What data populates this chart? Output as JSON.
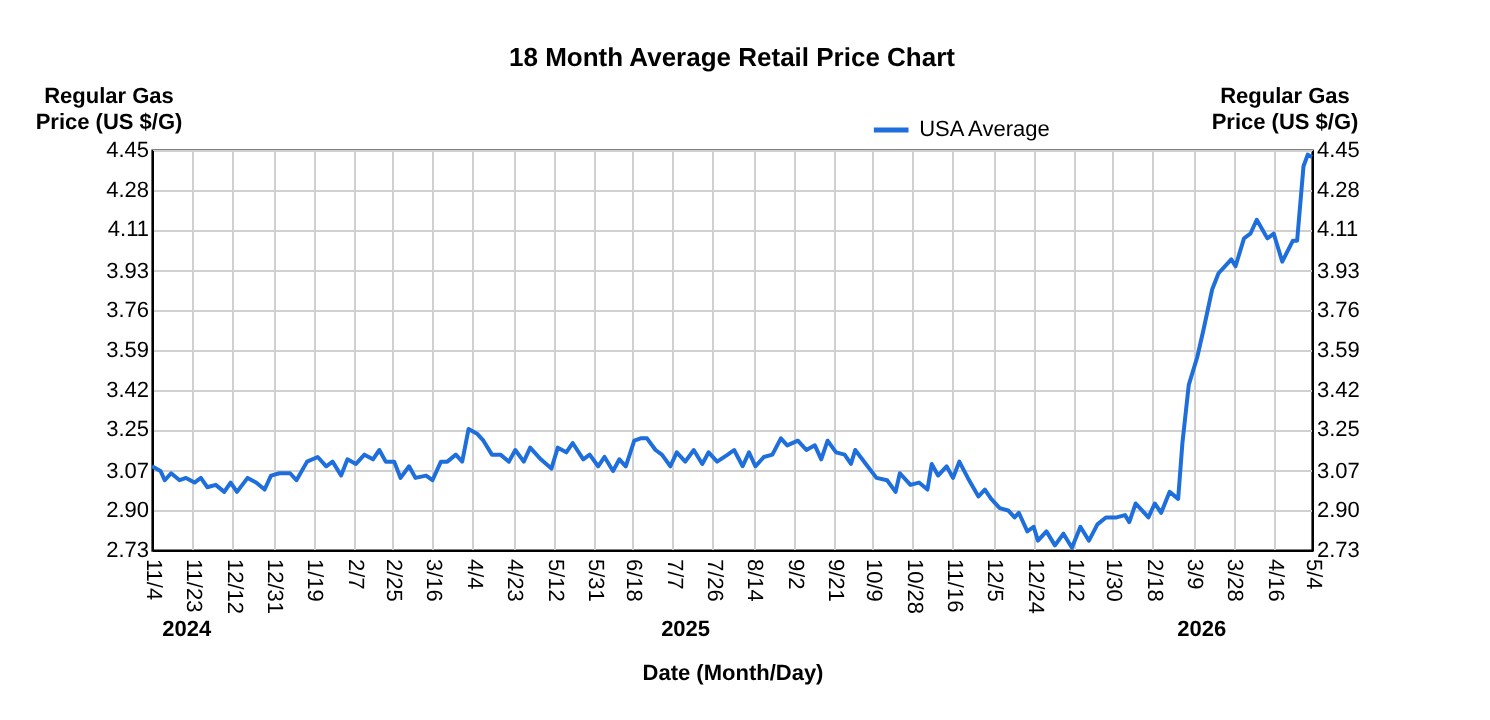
{
  "chart_data": {
    "type": "line",
    "title": "18 Month Average Retail Price Chart",
    "xlabel": "Date (Month/Day)",
    "ylabel": "Regular Gas\nPrice (US $/G)",
    "y2label": "Regular Gas\nPrice (US $/G)",
    "annotations": [
      "2024",
      "2025",
      "2026"
    ],
    "x": [
      "2024-11-04",
      "2024-11-08",
      "2024-11-10",
      "2024-11-13",
      "2024-11-17",
      "2024-11-20",
      "2024-11-24",
      "2024-11-27",
      "2024-11-30",
      "2024-12-04",
      "2024-12-08",
      "2024-12-11",
      "2024-12-14",
      "2024-12-19",
      "2024-12-23",
      "2024-12-27",
      "2024-12-30",
      "2025-01-03",
      "2025-01-08",
      "2025-01-11",
      "2025-01-16",
      "2025-01-21",
      "2025-01-25",
      "2025-01-28",
      "2025-02-01",
      "2025-02-04",
      "2025-02-08",
      "2025-02-12",
      "2025-02-16",
      "2025-02-19",
      "2025-02-22",
      "2025-02-26",
      "2025-03-01",
      "2025-03-05",
      "2025-03-08",
      "2025-03-13",
      "2025-03-16",
      "2025-03-20",
      "2025-03-23",
      "2025-03-27",
      "2025-03-30",
      "2025-04-02",
      "2025-04-06",
      "2025-04-09",
      "2025-04-13",
      "2025-04-17",
      "2025-04-21",
      "2025-04-24",
      "2025-04-28",
      "2025-05-01",
      "2025-05-06",
      "2025-05-11",
      "2025-05-14",
      "2025-05-18",
      "2025-05-21",
      "2025-05-26",
      "2025-05-29",
      "2025-06-02",
      "2025-06-05",
      "2025-06-09",
      "2025-06-12",
      "2025-06-15",
      "2025-06-19",
      "2025-06-22",
      "2025-06-25",
      "2025-06-29",
      "2025-07-02",
      "2025-07-06",
      "2025-07-09",
      "2025-07-13",
      "2025-07-17",
      "2025-07-21",
      "2025-07-24",
      "2025-07-28",
      "2025-08-02",
      "2025-08-05",
      "2025-08-09",
      "2025-08-12",
      "2025-08-15",
      "2025-08-19",
      "2025-08-23",
      "2025-08-27",
      "2025-08-30",
      "2025-09-04",
      "2025-09-08",
      "2025-09-12",
      "2025-09-15",
      "2025-09-18",
      "2025-09-22",
      "2025-09-26",
      "2025-09-29",
      "2025-10-01",
      "2025-10-06",
      "2025-10-11",
      "2025-10-16",
      "2025-10-20",
      "2025-10-22",
      "2025-10-27",
      "2025-10-31",
      "2025-11-04",
      "2025-11-06",
      "2025-11-09",
      "2025-11-13",
      "2025-11-16",
      "2025-11-19",
      "2025-11-23",
      "2025-11-28",
      "2025-12-01",
      "2025-12-04",
      "2025-12-08",
      "2025-12-12",
      "2025-12-15",
      "2025-12-17",
      "2025-12-21",
      "2025-12-24",
      "2025-12-26",
      "2025-12-30",
      "2026-01-03",
      "2026-01-07",
      "2026-01-11",
      "2026-01-15",
      "2026-01-19",
      "2026-01-23",
      "2026-01-27",
      "2026-02-01",
      "2026-02-05",
      "2026-02-07",
      "2026-02-10",
      "2026-02-13",
      "2026-02-16",
      "2026-02-19",
      "2026-02-22",
      "2026-02-26",
      "2026-03-02",
      "2026-03-04",
      "2026-03-07",
      "2026-03-11",
      "2026-03-14",
      "2026-03-18",
      "2026-03-21",
      "2026-03-24",
      "2026-03-27",
      "2026-03-29",
      "2026-04-02",
      "2026-04-05",
      "2026-04-08",
      "2026-04-13",
      "2026-04-16",
      "2026-04-20",
      "2026-04-25",
      "2026-04-27",
      "2026-04-30",
      "2026-05-02",
      "2026-05-04"
    ],
    "series": [
      {
        "name": "USA Average",
        "color": "#1e6fdc",
        "values": [
          3.09,
          3.07,
          3.03,
          3.06,
          3.03,
          3.04,
          3.02,
          3.04,
          3.0,
          3.01,
          2.98,
          3.02,
          2.98,
          3.04,
          3.02,
          2.99,
          3.05,
          3.06,
          3.06,
          3.03,
          3.11,
          3.13,
          3.09,
          3.11,
          3.05,
          3.12,
          3.1,
          3.14,
          3.12,
          3.16,
          3.11,
          3.11,
          3.04,
          3.09,
          3.04,
          3.05,
          3.03,
          3.11,
          3.11,
          3.14,
          3.11,
          3.25,
          3.23,
          3.2,
          3.14,
          3.14,
          3.11,
          3.16,
          3.11,
          3.17,
          3.12,
          3.08,
          3.17,
          3.15,
          3.19,
          3.12,
          3.14,
          3.09,
          3.13,
          3.07,
          3.12,
          3.09,
          3.2,
          3.21,
          3.21,
          3.16,
          3.14,
          3.09,
          3.15,
          3.11,
          3.16,
          3.1,
          3.15,
          3.11,
          3.14,
          3.16,
          3.09,
          3.15,
          3.09,
          3.13,
          3.14,
          3.21,
          3.18,
          3.2,
          3.16,
          3.18,
          3.12,
          3.2,
          3.15,
          3.14,
          3.1,
          3.16,
          3.1,
          3.04,
          3.03,
          2.98,
          3.06,
          3.01,
          3.02,
          2.99,
          3.1,
          3.05,
          3.09,
          3.04,
          3.11,
          3.04,
          2.96,
          2.99,
          2.95,
          2.91,
          2.9,
          2.87,
          2.89,
          2.81,
          2.83,
          2.77,
          2.81,
          2.75,
          2.8,
          2.74,
          2.83,
          2.77,
          2.84,
          2.87,
          2.87,
          2.88,
          2.85,
          2.93,
          2.9,
          2.87,
          2.93,
          2.89,
          2.98,
          2.95,
          3.19,
          3.44,
          3.56,
          3.68,
          3.85,
          3.92,
          3.95,
          3.98,
          3.95,
          4.07,
          4.09,
          4.15,
          4.07,
          4.09,
          3.97,
          4.06,
          4.06,
          4.38,
          4.43,
          4.42
        ]
      }
    ],
    "xlim": [
      "2024-11-04",
      "2026-05-04"
    ],
    "xticks": [
      {
        "value": "2024-11-04",
        "label": "11/4"
      },
      {
        "value": "2024-11-23",
        "label": "11/23"
      },
      {
        "value": "2024-12-12",
        "label": "12/12"
      },
      {
        "value": "2024-12-31",
        "label": "12/31"
      },
      {
        "value": "2025-01-19",
        "label": "1/19"
      },
      {
        "value": "2025-02-07",
        "label": "2/7"
      },
      {
        "value": "2025-02-25",
        "label": "2/25"
      },
      {
        "value": "2025-03-16",
        "label": "3/16"
      },
      {
        "value": "2025-04-04",
        "label": "4/4"
      },
      {
        "value": "2025-04-23",
        "label": "4/23"
      },
      {
        "value": "2025-05-12",
        "label": "5/12"
      },
      {
        "value": "2025-05-31",
        "label": "5/31"
      },
      {
        "value": "2025-06-18",
        "label": "6/18"
      },
      {
        "value": "2025-07-07",
        "label": "7/7"
      },
      {
        "value": "2025-07-26",
        "label": "7/26"
      },
      {
        "value": "2025-08-14",
        "label": "8/14"
      },
      {
        "value": "2025-09-02",
        "label": "9/2"
      },
      {
        "value": "2025-09-21",
        "label": "9/21"
      },
      {
        "value": "2025-10-09",
        "label": "10/9"
      },
      {
        "value": "2025-10-28",
        "label": "10/28"
      },
      {
        "value": "2025-11-16",
        "label": "11/16"
      },
      {
        "value": "2025-12-05",
        "label": "12/5"
      },
      {
        "value": "2025-12-24",
        "label": "12/24"
      },
      {
        "value": "2026-01-12",
        "label": "1/12"
      },
      {
        "value": "2026-01-30",
        "label": "1/30"
      },
      {
        "value": "2026-02-18",
        "label": "2/18"
      },
      {
        "value": "2026-03-09",
        "label": "3/9"
      },
      {
        "value": "2026-03-28",
        "label": "3/28"
      },
      {
        "value": "2026-04-16",
        "label": "4/16"
      },
      {
        "value": "2026-05-04",
        "label": "5/4"
      }
    ],
    "ylim": [
      2.73,
      4.45
    ],
    "yticks": [
      2.73,
      {
        "value": 2.9,
        "label": "2.90"
      },
      3.07,
      3.25,
      3.42,
      3.59,
      3.76,
      3.93,
      4.11,
      4.28,
      4.45
    ],
    "y2lim": [
      2.73,
      4.45
    ],
    "y2ticks": [
      2.73,
      {
        "value": 2.9,
        "label": "2.90"
      },
      3.07,
      3.25,
      3.42,
      3.59,
      3.76,
      3.93,
      4.11,
      4.28,
      4.45
    ],
    "grid": true,
    "legend": "top",
    "marker": "none",
    "line_style": "solid"
  }
}
